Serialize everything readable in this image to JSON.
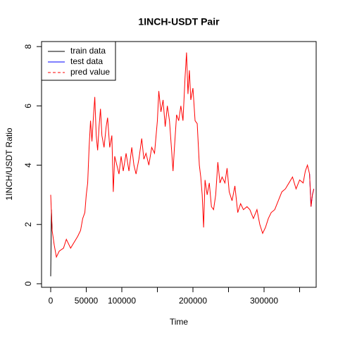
{
  "chart_data": {
    "type": "line",
    "title": "1INCH-USDT Pair",
    "x_label": "Time",
    "y_label": "1INCH/USDT  Ratio",
    "xlim": [
      -12870,
      373270
    ],
    "ylim": [
      -0.12,
      8.17
    ],
    "xticks": [
      0,
      50000,
      100000,
      {
        "value": 150000,
        "label": null
      },
      200000,
      {
        "value": 250000,
        "label": null
      },
      300000,
      {
        "value": 350000,
        "label": null
      }
    ],
    "yticks": [
      0,
      2,
      4,
      6,
      8
    ],
    "legend": "top-left",
    "series": [
      {
        "name": "train data",
        "color": "#000000",
        "lty": "solid",
        "x": [
          0,
          1000,
          2000
        ],
        "values": [
          0.25,
          2.5,
          1.8
        ]
      },
      {
        "name": "test data",
        "color": "#0000ff",
        "lty": "solid",
        "x": [
          364000,
          366000,
          368000,
          370000
        ],
        "values": [
          3.7,
          2.6,
          3.0,
          3.2
        ]
      },
      {
        "name": "pred value",
        "color": "#ff0000",
        "lty": "dashed",
        "x": [
          0,
          2000,
          5000,
          8000,
          12000,
          18000,
          22000,
          28000,
          33000,
          38000,
          42000,
          45000,
          48000,
          50000,
          52000,
          54000,
          56000,
          58000,
          60000,
          62000,
          64000,
          66000,
          68000,
          70000,
          72000,
          75000,
          78000,
          80000,
          83000,
          86000,
          88000,
          90000,
          93000,
          96000,
          99000,
          102000,
          106000,
          110000,
          114000,
          117000,
          120000,
          124000,
          128000,
          131000,
          134000,
          138000,
          142000,
          146000,
          150000,
          152000,
          155000,
          158000,
          161000,
          164000,
          167000,
          170000,
          172000,
          174000,
          177000,
          180000,
          183000,
          186000,
          189000,
          191000,
          193000,
          195000,
          197000,
          200000,
          203000,
          206000,
          209000,
          211000,
          213000,
          215000,
          217000,
          220000,
          223000,
          226000,
          229000,
          232000,
          235000,
          238000,
          241000,
          245000,
          248000,
          251000,
          255000,
          259000,
          263000,
          267000,
          271000,
          276000,
          280000,
          285000,
          290000,
          294000,
          298000,
          302000,
          306000,
          310000,
          315000,
          320000,
          325000,
          330000,
          335000,
          340000,
          345000,
          350000,
          355000,
          358000,
          361000,
          364000,
          366000,
          368000,
          370000
        ],
        "values": [
          3.0,
          1.8,
          1.3,
          0.9,
          1.1,
          1.2,
          1.5,
          1.2,
          1.4,
          1.6,
          1.8,
          2.2,
          2.4,
          3.0,
          3.4,
          4.6,
          5.5,
          4.8,
          5.6,
          6.3,
          5.0,
          4.5,
          5.3,
          5.9,
          5.0,
          4.6,
          5.3,
          5.6,
          4.6,
          5.0,
          3.1,
          4.3,
          4.0,
          3.7,
          4.3,
          3.8,
          4.4,
          3.8,
          4.6,
          4.0,
          3.7,
          4.2,
          4.9,
          4.2,
          4.4,
          4.0,
          4.6,
          4.4,
          5.5,
          6.5,
          5.8,
          6.2,
          5.3,
          6.0,
          5.5,
          4.5,
          3.8,
          4.6,
          5.7,
          5.5,
          6.0,
          5.5,
          7.0,
          7.8,
          6.4,
          7.2,
          6.2,
          6.6,
          5.5,
          5.4,
          4.0,
          3.6,
          3.0,
          1.9,
          3.5,
          3.0,
          3.4,
          2.6,
          2.5,
          3.0,
          4.1,
          3.4,
          3.6,
          3.4,
          3.9,
          3.1,
          2.8,
          3.3,
          2.4,
          2.7,
          2.5,
          2.6,
          2.5,
          2.2,
          2.5,
          2.0,
          1.7,
          1.9,
          2.2,
          2.4,
          2.5,
          2.8,
          3.1,
          3.2,
          3.4,
          3.6,
          3.2,
          3.5,
          3.4,
          3.8,
          4.0,
          3.7,
          2.6,
          3.0,
          3.2
        ]
      }
    ]
  }
}
